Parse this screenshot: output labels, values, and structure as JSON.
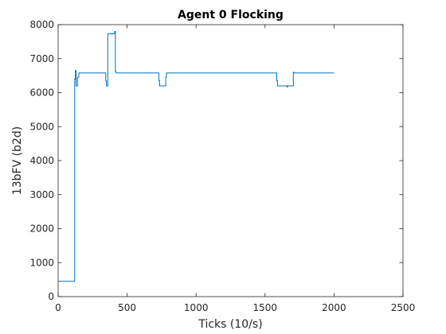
{
  "chart_data": {
    "type": "line",
    "title": "Agent 0 Flocking",
    "xlabel": "Ticks (10/s)",
    "ylabel": "13bFV (b2d)",
    "xlim": [
      0,
      2500
    ],
    "ylim": [
      0,
      8000
    ],
    "xticks": [
      0,
      500,
      1000,
      1500,
      2000,
      2500
    ],
    "xtick_labels": [
      "0",
      "500",
      "1000",
      "1500",
      "2000",
      "2500"
    ],
    "yticks": [
      0,
      1000,
      2000,
      3000,
      4000,
      5000,
      6000,
      7000,
      8000
    ],
    "ytick_labels": [
      "0",
      "1000",
      "2000",
      "3000",
      "4000",
      "5000",
      "6000",
      "7000",
      "8000"
    ],
    "grid": false,
    "box": true,
    "line_color": "#0072bd",
    "series": [
      {
        "type": "step",
        "x": [
          0,
          120,
          120,
          125,
          125,
          130,
          130,
          140,
          140,
          150,
          150,
          345,
          345,
          350,
          350,
          360,
          360,
          410,
          410,
          415,
          415,
          420,
          420,
          430,
          430,
          730,
          730,
          735,
          735,
          780,
          780,
          785,
          785,
          1585,
          1585,
          1590,
          1590,
          1660,
          1660,
          1665,
          1665,
          1705,
          1705,
          1710,
          1710,
          2000
        ],
        "y": [
          450,
          450,
          6400,
          6400,
          6650,
          6650,
          6200,
          6200,
          6450,
          6450,
          6580,
          6580,
          6350,
          6350,
          6200,
          6200,
          7730,
          7730,
          7800,
          7800,
          6620,
          6620,
          6580,
          6580,
          6580,
          6580,
          6350,
          6350,
          6200,
          6200,
          6450,
          6450,
          6580,
          6580,
          6350,
          6350,
          6200,
          6200,
          6170,
          6170,
          6200,
          6200,
          6600,
          6600,
          6580,
          6580
        ]
      }
    ]
  }
}
